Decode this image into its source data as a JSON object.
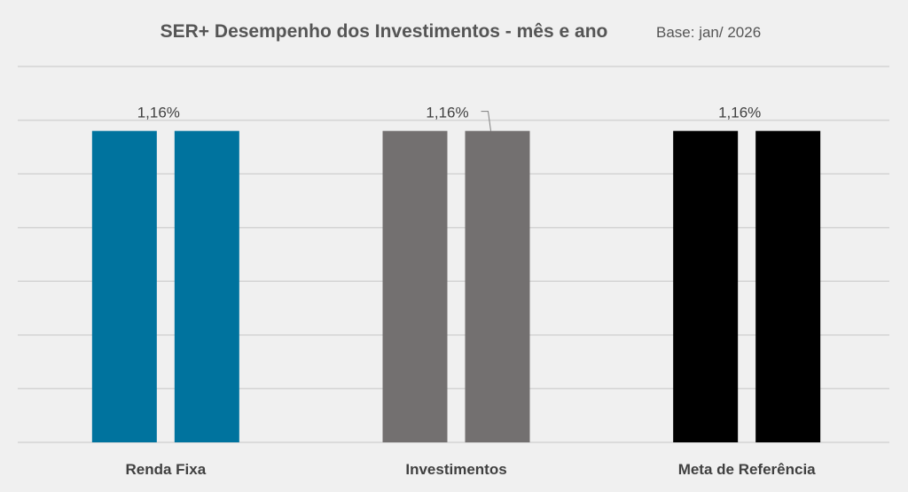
{
  "chart_data": {
    "type": "bar",
    "title": "SER+  Desempenho dos Investimentos - mês e ano",
    "subtitle": "Base: jan/ 2026",
    "categories": [
      "Renda Fixa",
      "Investimentos",
      "Meta de Referência"
    ],
    "series": [
      {
        "values": [
          1.16,
          1.16,
          1.16
        ]
      },
      {
        "values": [
          1.16,
          1.16,
          1.16
        ]
      }
    ],
    "colors": [
      "#00739e",
      "#737070",
      "#000000"
    ],
    "data_labels": [
      "1,16%",
      "1,16%",
      "1,16%"
    ],
    "ylim": [
      0,
      1.4
    ],
    "grid": true,
    "legend": "none",
    "xlabel": "",
    "ylabel": ""
  }
}
